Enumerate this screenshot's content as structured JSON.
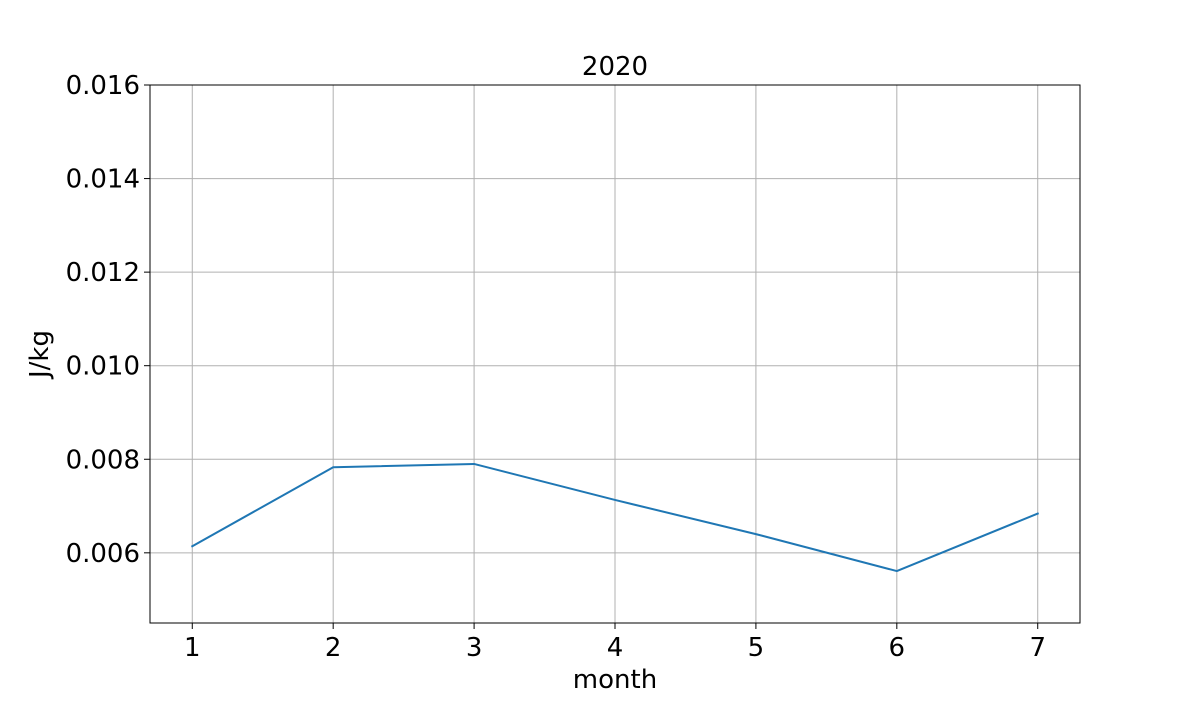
{
  "chart_data": {
    "type": "line",
    "title": "2020",
    "xlabel": "month",
    "ylabel": "J/kg",
    "x": [
      1,
      2,
      3,
      4,
      5,
      6,
      7
    ],
    "series": [
      {
        "values": [
          0.00614,
          0.00783,
          0.0079,
          0.00713,
          0.0064,
          0.00561,
          0.00684
        ],
        "color": "#1f77b4"
      }
    ],
    "xlim": [
      0.7,
      7.3
    ],
    "ylim": [
      0.0045,
      0.016
    ],
    "xticks": [
      1,
      2,
      3,
      4,
      5,
      6,
      7
    ],
    "xtick_labels": [
      "1",
      "2",
      "3",
      "4",
      "5",
      "6",
      "7"
    ],
    "yticks": [
      0.006,
      0.008,
      0.01,
      0.012,
      0.014,
      0.016
    ],
    "ytick_labels": [
      "0.006",
      "0.008",
      "0.010",
      "0.012",
      "0.014",
      "0.016"
    ],
    "grid": true,
    "legend": false
  }
}
